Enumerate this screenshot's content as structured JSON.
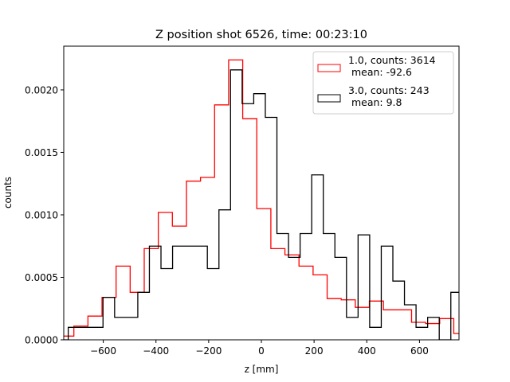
{
  "chart_data": {
    "type": "histogram",
    "title": "Z position shot 6526, time: 00:23:10",
    "xlabel": "z [mm]",
    "ylabel": "counts",
    "xlim": [
      -750,
      750
    ],
    "ylim": [
      0,
      0.00235
    ],
    "xticks": [
      -600,
      -400,
      -200,
      0,
      200,
      400,
      600
    ],
    "xtick_labels": [
      "−600",
      "−400",
      "−200",
      "0",
      "200",
      "400",
      "600"
    ],
    "yticks": [
      0,
      0.0005,
      0.001,
      0.0015,
      0.002
    ],
    "ytick_labels": [
      "0.0000",
      "0.0005",
      "0.0010",
      "0.0015",
      "0.0020"
    ],
    "grid": false,
    "legend_position": "top-right",
    "series": [
      {
        "name": "1.0, counts: 3614",
        "legend_line2": " mean: -92.6",
        "color": "#ff0000",
        "bin_start": -765,
        "bin_width": 53.4,
        "values": [
          3e-05,
          0.00011,
          0.00019,
          0.00034,
          0.00059,
          0.00038,
          0.00073,
          0.00102,
          0.00091,
          0.00127,
          0.0013,
          0.00188,
          0.00224,
          0.00177,
          0.00105,
          0.00073,
          0.00068,
          0.00059,
          0.00052,
          0.00033,
          0.00032,
          0.00026,
          0.00031,
          0.00024,
          0.00024,
          0.00014,
          0.00013,
          0.00017,
          5e-05
        ]
      },
      {
        "name": "3.0, counts: 243",
        "legend_line2": " mean: 9.8",
        "color": "#000000",
        "bin_start": -777,
        "bin_width": 44,
        "values": [
          0,
          0.0001,
          0.0001,
          0.0001,
          0.00034,
          0.00018,
          0.00018,
          0.00038,
          0.00075,
          0.00057,
          0.00075,
          0.00075,
          0.00075,
          0.00057,
          0.00104,
          0.00216,
          0.00189,
          0.00197,
          0.00178,
          0.00085,
          0.00066,
          0.00085,
          0.00132,
          0.00085,
          0.00066,
          0.00018,
          0.00084,
          0.0001,
          0.00075,
          0.00047,
          0.00028,
          0.0001,
          0.00018,
          0,
          0.00038
        ]
      }
    ]
  }
}
